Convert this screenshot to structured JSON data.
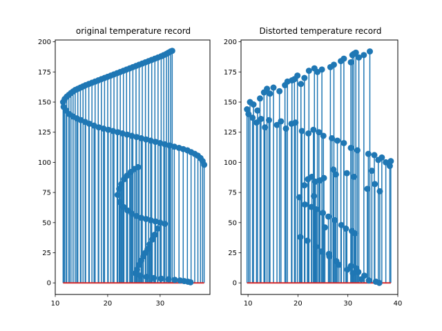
{
  "chart_data": [
    {
      "type": "stem",
      "title": "original temperature record",
      "xlim": [
        10,
        39.5
      ],
      "ylim": [
        -9.6,
        201.5
      ],
      "xticks": [
        10,
        20,
        30
      ],
      "yticks": [
        0,
        25,
        50,
        75,
        100,
        125,
        150,
        175,
        200
      ],
      "grid": false,
      "baseline": 0,
      "x": [
        11.5,
        11.8,
        12.2,
        12.6,
        13.0,
        13.4,
        13.8,
        14.3,
        14.8,
        15.3,
        15.8,
        16.4,
        17.0,
        17.6,
        18.2,
        18.8,
        19.4,
        20.0,
        20.6,
        21.2,
        21.8,
        22.4,
        23.0,
        23.6,
        24.2,
        24.8,
        25.4,
        26.0,
        26.6,
        27.2,
        27.8,
        28.4,
        29.0,
        29.6,
        30.2,
        30.7,
        31.2,
        31.6,
        32.0,
        32.3,
        11.6,
        12.1,
        12.7,
        13.4,
        14.1,
        14.9,
        15.7,
        16.5,
        17.4,
        18.3,
        19.2,
        20.1,
        21.0,
        21.9,
        22.8,
        23.7,
        24.6,
        25.5,
        26.4,
        27.3,
        28.2,
        29.1,
        30.0,
        30.9,
        31.8,
        32.7,
        33.6,
        34.4,
        35.2,
        35.9,
        36.6,
        37.2,
        37.7,
        38.1,
        38.4,
        21.9,
        22.2,
        22.6,
        23.1,
        23.7,
        24.4,
        25.1,
        25.8,
        22.3,
        23.0,
        23.8,
        24.6,
        25.5,
        26.4,
        27.3,
        28.2,
        29.1,
        30.0,
        30.9,
        29.5,
        29.0,
        28.5,
        28.0,
        27.6,
        27.2,
        26.8,
        26.4,
        26.0,
        25.6,
        25.3,
        26.2,
        27.4,
        28.8,
        30.2,
        31.6,
        32.8,
        33.8,
        34.6,
        35.3,
        35.8
      ],
      "values": [
        150.0,
        152.5,
        154.5,
        156.0,
        157.5,
        158.8,
        160.0,
        161.0,
        162.0,
        163.0,
        164.0,
        165.0,
        166.0,
        167.0,
        168.0,
        169.0,
        170.0,
        171.0,
        172.0,
        173.0,
        174.0,
        175.0,
        176.0,
        177.0,
        178.0,
        179.0,
        180.0,
        181.0,
        182.0,
        183.0,
        184.0,
        185.0,
        186.0,
        187.0,
        188.0,
        189.0,
        190.0,
        191.0,
        192.0,
        192.5,
        146.0,
        143.0,
        140.0,
        138.0,
        136.5,
        135.0,
        133.5,
        132.0,
        130.5,
        129.0,
        128.0,
        127.0,
        126.0,
        125.0,
        124.0,
        123.0,
        122.0,
        121.0,
        120.0,
        119.0,
        118.0,
        117.0,
        116.0,
        115.0,
        114.0,
        113.0,
        112.0,
        111.0,
        110.0,
        108.5,
        107.0,
        105.5,
        103.5,
        101.0,
        98.0,
        73.0,
        78.0,
        82.0,
        86.0,
        89.0,
        92.0,
        94.5,
        96.0,
        67.0,
        63.0,
        60.0,
        57.5,
        55.5,
        54.0,
        53.0,
        52.0,
        51.0,
        50.0,
        49.0,
        45.0,
        40.0,
        36.0,
        32.0,
        28.0,
        25.0,
        22.0,
        18.5,
        15.0,
        11.0,
        8.0,
        6.0,
        5.0,
        4.0,
        3.5,
        3.0,
        2.5,
        2.0,
        1.5,
        1.0,
        0.5
      ],
      "color": "#1f77b4",
      "baseline_color": "#d62728"
    },
    {
      "type": "stem",
      "title": "Distorted temperature record",
      "xlim": [
        8.6,
        40
      ],
      "ylim": [
        -9.6,
        201.5
      ],
      "xticks": [
        10,
        20,
        30,
        40
      ],
      "yticks": [
        0,
        25,
        50,
        75,
        100,
        125,
        150,
        175,
        200
      ],
      "grid": false,
      "baseline": 0,
      "x": [
        9.8,
        10.4,
        11.1,
        11.9,
        12.4,
        13.2,
        13.8,
        14.4,
        15.1,
        16.3,
        17.4,
        17.9,
        18.8,
        19.3,
        19.9,
        20.6,
        21.3,
        22.2,
        23.3,
        23.9,
        24.8,
        26.5,
        27.2,
        28.6,
        29.2,
        30.6,
        30.9,
        31.2,
        31.6,
        32.2,
        33.2,
        34.4,
        10.1,
        10.9,
        11.7,
        12.6,
        13.4,
        14.2,
        15.8,
        16.6,
        17.6,
        18.7,
        19.5,
        20.8,
        22.1,
        23.1,
        24.2,
        25.1,
        26.8,
        27.9,
        29.2,
        30.6,
        31.9,
        34.1,
        35.3,
        36.1,
        36.8,
        37.6,
        38.4,
        38.6,
        21.3,
        22.0,
        22.8,
        23.5,
        24.4,
        25.2,
        27.1,
        27.6,
        29.8,
        31.2,
        33.9,
        34.8,
        35.4,
        36.4,
        20.3,
        21.4,
        22.7,
        23.7,
        25.0,
        26.1,
        27.4,
        28.7,
        29.6,
        30.8,
        31.4,
        20.5,
        21.9,
        23.6,
        24.7,
        26.3,
        27.7,
        30.6,
        31.7,
        32.1,
        33.3,
        23.2,
        25.4,
        26.2,
        28.2,
        29.9,
        31.0,
        32.7,
        34.2,
        35.6,
        36.3
      ],
      "values": [
        144,
        150,
        148,
        143,
        153,
        158,
        161,
        157,
        162,
        159,
        164,
        167,
        168,
        169,
        172,
        165,
        170,
        176,
        178,
        175,
        177,
        179,
        181,
        184,
        186,
        183,
        189,
        190,
        191,
        187,
        189,
        192,
        140,
        137,
        133,
        136,
        129,
        135,
        131,
        134,
        128,
        132,
        133,
        126,
        124,
        127,
        125,
        122,
        120,
        118,
        116,
        112,
        110,
        107,
        106,
        102,
        104,
        100,
        97,
        101,
        81,
        86,
        88,
        84,
        85,
        87,
        94,
        90,
        91,
        88,
        78,
        93,
        82,
        76,
        71,
        65,
        63,
        61,
        58,
        55,
        52,
        48,
        45,
        43,
        41,
        38,
        35,
        30,
        26,
        22,
        18,
        14,
        12,
        9,
        6,
        72,
        46,
        24,
        15,
        11,
        8,
        3,
        2,
        1,
        0
      ],
      "color": "#1f77b4",
      "baseline_color": "#d62728"
    }
  ]
}
